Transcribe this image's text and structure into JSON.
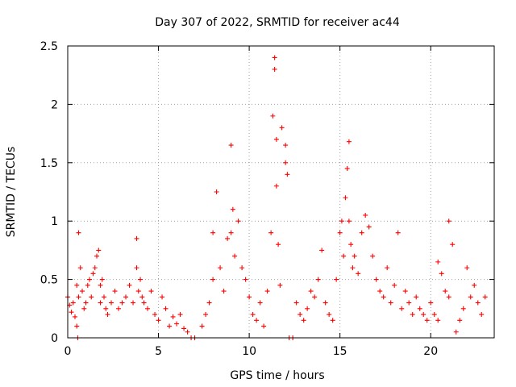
{
  "chart_data": {
    "type": "scatter",
    "title": "Day 307 of 2022, SRMTID for receiver ac44",
    "xlabel": "GPS time / hours",
    "ylabel": "SRMTID / TECUs",
    "xlim": [
      0,
      23.5
    ],
    "ylim": [
      0,
      2.5
    ],
    "xticks": [
      0,
      5,
      10,
      15,
      20
    ],
    "xtick_labels": [
      "0",
      "5",
      "10",
      "15",
      "20"
    ],
    "yticks": [
      0,
      0.5,
      1,
      1.5,
      2,
      2.5
    ],
    "ytick_labels": [
      "0",
      "0.5",
      "1",
      "1.5",
      "2",
      "2.5"
    ],
    "grid": true,
    "marker": "+",
    "series": [
      {
        "name": "SRMTID",
        "color": "#ff0000",
        "x": [
          0.0,
          0.1,
          0.2,
          0.3,
          0.4,
          0.5,
          0.5,
          0.55,
          0.6,
          0.6,
          0.7,
          0.8,
          0.9,
          1.0,
          1.1,
          1.2,
          1.3,
          1.4,
          1.5,
          1.6,
          1.7,
          1.8,
          1.8,
          1.9,
          2.0,
          2.1,
          2.2,
          2.4,
          2.6,
          2.8,
          3.0,
          3.2,
          3.4,
          3.6,
          3.8,
          3.8,
          3.9,
          4.0,
          4.1,
          4.2,
          4.4,
          4.6,
          4.8,
          5.0,
          5.2,
          5.4,
          5.6,
          5.8,
          6.0,
          6.2,
          6.4,
          6.6,
          6.8,
          7.0,
          7.4,
          7.6,
          7.8,
          8.0,
          8.0,
          8.2,
          8.4,
          8.6,
          8.8,
          9.0,
          9.0,
          9.1,
          9.2,
          9.4,
          9.6,
          9.8,
          10.0,
          10.2,
          10.4,
          10.6,
          10.8,
          11.0,
          11.2,
          11.3,
          11.4,
          11.4,
          11.5,
          11.5,
          11.6,
          11.7,
          11.8,
          12.0,
          12.0,
          12.1,
          12.2,
          12.4,
          12.6,
          12.8,
          13.0,
          13.2,
          13.4,
          13.6,
          13.8,
          14.0,
          14.2,
          14.4,
          14.6,
          14.8,
          15.0,
          15.1,
          15.2,
          15.3,
          15.4,
          15.5,
          15.5,
          15.6,
          15.7,
          15.8,
          16.0,
          16.2,
          16.4,
          16.6,
          16.8,
          17.0,
          17.2,
          17.4,
          17.6,
          17.8,
          18.0,
          18.2,
          18.4,
          18.6,
          18.8,
          19.0,
          19.2,
          19.4,
          19.6,
          19.8,
          20.0,
          20.2,
          20.4,
          20.4,
          20.6,
          20.8,
          21.0,
          21.0,
          21.2,
          21.4,
          21.6,
          21.8,
          22.0,
          22.2,
          22.4,
          22.6,
          22.8,
          23.0
        ],
        "y": [
          0.35,
          0.28,
          0.22,
          0.3,
          0.18,
          0.45,
          0.1,
          0.0,
          0.9,
          0.35,
          0.6,
          0.4,
          0.25,
          0.3,
          0.45,
          0.5,
          0.35,
          0.55,
          0.6,
          0.7,
          0.75,
          0.45,
          0.3,
          0.5,
          0.35,
          0.25,
          0.2,
          0.3,
          0.4,
          0.25,
          0.3,
          0.35,
          0.45,
          0.3,
          0.85,
          0.6,
          0.4,
          0.5,
          0.35,
          0.3,
          0.25,
          0.4,
          0.2,
          0.15,
          0.35,
          0.25,
          0.1,
          0.18,
          0.12,
          0.2,
          0.08,
          0.05,
          0.0,
          0.0,
          0.1,
          0.2,
          0.3,
          0.5,
          0.9,
          1.25,
          0.6,
          0.4,
          0.85,
          1.65,
          0.9,
          1.1,
          0.7,
          1.0,
          0.6,
          0.5,
          0.35,
          0.2,
          0.15,
          0.3,
          0.1,
          0.4,
          0.9,
          1.9,
          2.4,
          2.3,
          1.7,
          1.3,
          0.8,
          0.45,
          1.8,
          1.65,
          1.5,
          1.4,
          0.0,
          0.0,
          0.3,
          0.2,
          0.15,
          0.25,
          0.4,
          0.35,
          0.5,
          0.75,
          0.3,
          0.2,
          0.15,
          0.5,
          0.9,
          1.0,
          0.7,
          1.2,
          1.45,
          1.68,
          1.0,
          0.8,
          0.6,
          0.7,
          0.55,
          0.9,
          1.05,
          0.95,
          0.7,
          0.5,
          0.4,
          0.35,
          0.6,
          0.3,
          0.45,
          0.9,
          0.25,
          0.4,
          0.3,
          0.2,
          0.35,
          0.25,
          0.2,
          0.15,
          0.3,
          0.2,
          0.15,
          0.65,
          0.55,
          0.4,
          0.35,
          1.0,
          0.8,
          0.05,
          0.15,
          0.25,
          0.6,
          0.35,
          0.45,
          0.3,
          0.2,
          0.35
        ]
      }
    ]
  }
}
